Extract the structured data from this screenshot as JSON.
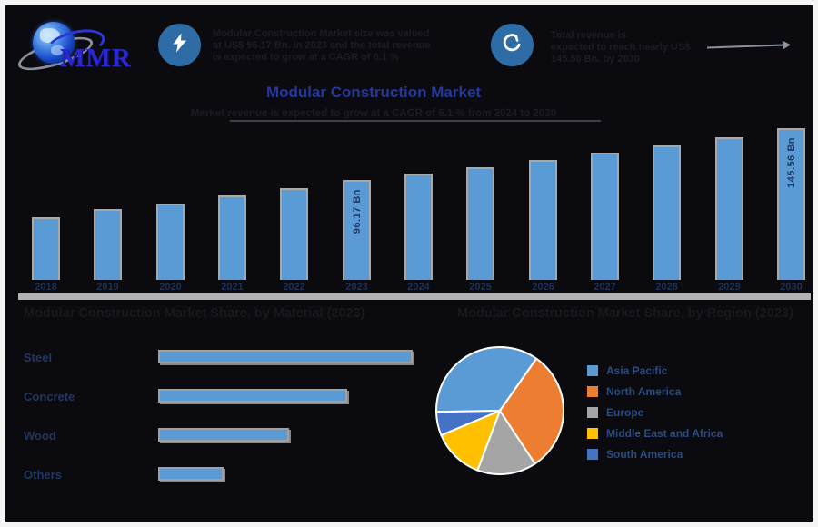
{
  "brand": {
    "logo_text": "MMR"
  },
  "header": {
    "bullet1": {
      "icon": "lightning-icon",
      "lines": [
        "Modular Construction Market size was valued",
        "at US$ 96.17 Bn. in 2023 and the total revenue",
        "is expected to grow at a CAGR of 6.1 %"
      ]
    },
    "bullet2": {
      "icon": "growth-hook-icon",
      "lines": [
        "Total revenue is",
        "expected to reach nearly US$",
        "145.56 Bn. by 2030"
      ]
    }
  },
  "title": "Modular Construction Market",
  "subtitle": "Market revenue is expected to grow at a CAGR of 6.1 % from 2024 to 2030",
  "colors": {
    "background": "#0a0a0f",
    "frame_border": "#f4f4f4",
    "title_blue": "#24389c",
    "bar_blue": "#5b9bd5",
    "bar_shadow_gray": "#a8a8a8",
    "separator_gray": "#b2b2b6",
    "value_label_navy": "#1f3864",
    "icon_circle_blue": "#2e6ca6"
  },
  "chart_data": [
    {
      "id": "market-size-by-year",
      "type": "bar",
      "x": [
        "2018",
        "2019",
        "2020",
        "2021",
        "2022",
        "2023",
        "2024",
        "2025",
        "2026",
        "2027",
        "2028",
        "2029",
        "2030"
      ],
      "values": [
        59.9,
        68.1,
        73.5,
        80.8,
        88.0,
        96.17,
        102.04,
        108.27,
        114.87,
        121.88,
        129.31,
        137.2,
        145.56
      ],
      "unit": "US$ Bn",
      "ylim": [
        0,
        150
      ],
      "grid": false,
      "bar_color": "#5b9bd5",
      "annotations": [
        {
          "x": "2023",
          "text": "96.17 Bn"
        },
        {
          "x": "2030",
          "text": "145.56 Bn"
        }
      ]
    },
    {
      "id": "share-by-material",
      "type": "bar",
      "orientation": "horizontal",
      "title": "Modular Construction Market Share, by Material (2023)",
      "categories": [
        "Steel",
        "Concrete",
        "Wood",
        "Others"
      ],
      "values": [
        39,
        29,
        20,
        10
      ],
      "unit": "%",
      "xlim": [
        0,
        40
      ],
      "bar_color": "#5b9bd5"
    },
    {
      "id": "share-by-region",
      "type": "pie",
      "title": "Modular Construction Market Share, by Region (2023)",
      "labels": [
        "Asia Pacific",
        "North America",
        "Europe",
        "Middle East and Africa",
        "South America"
      ],
      "values": [
        35,
        31,
        15,
        13,
        6
      ],
      "unit": "%",
      "colors": [
        "#5B9BD5",
        "#ED7D31",
        "#A5A5A5",
        "#FFC000",
        "#4472C4"
      ],
      "legend_position": "right",
      "start_angle_deg": -91
    }
  ]
}
